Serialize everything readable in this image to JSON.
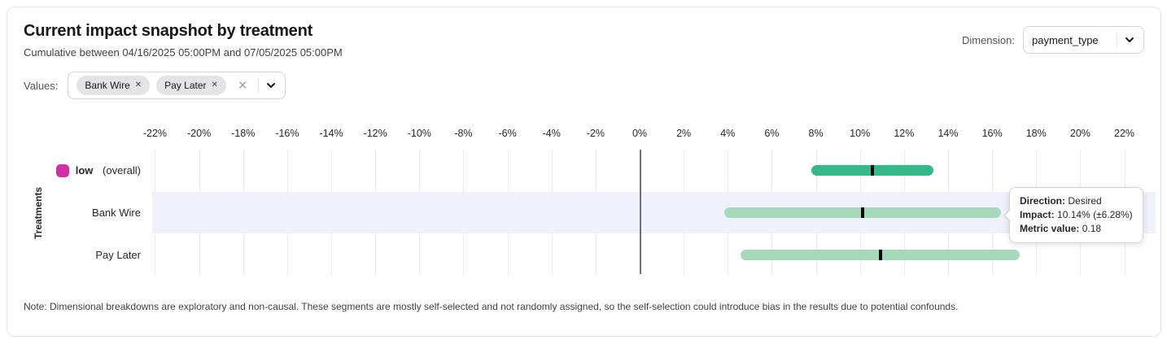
{
  "header": {
    "title": "Current impact snapshot by treatment",
    "subtitle": "Cumulative between 04/16/2025 05:00PM and 07/05/2025 05:00PM",
    "dimension_label": "Dimension:",
    "dimension_value": "payment_type"
  },
  "values_filter": {
    "label": "Values:",
    "chips": [
      "Bank Wire",
      "Pay Later"
    ],
    "chip_remove_icon": "✕",
    "clear_icon": "✕"
  },
  "chart_data": {
    "type": "interval",
    "title": "Current impact snapshot by treatment",
    "ylabel": "Treatments",
    "x_unit": "%",
    "x_ticks": [
      -22,
      -20,
      -18,
      -16,
      -14,
      -12,
      -10,
      -8,
      -6,
      -4,
      -2,
      0,
      2,
      4,
      6,
      8,
      10,
      12,
      14,
      16,
      18,
      20,
      22
    ],
    "xlim": [
      -22.5,
      23.5
    ],
    "grid": "vertical",
    "rows": [
      {
        "label": "low",
        "suffix": " (overall)",
        "label_bold": true,
        "swatch": "#d02fa6",
        "bar_color": "#36b98a",
        "impact": 10.55,
        "half_interval": 2.77,
        "highlighted": false
      },
      {
        "label": "Bank Wire",
        "suffix": "",
        "label_bold": false,
        "swatch": null,
        "bar_color": "#a5d9ba",
        "impact": 10.14,
        "half_interval": 6.28,
        "highlighted": true
      },
      {
        "label": "Pay Later",
        "suffix": "",
        "label_bold": false,
        "swatch": null,
        "bar_color": "#a5d9ba",
        "impact": 10.92,
        "half_interval": 6.33,
        "highlighted": false
      }
    ],
    "tooltip": {
      "attached_row": "Bank Wire",
      "lines": [
        {
          "label": "Direction:",
          "value": "Desired"
        },
        {
          "label": "Impact:",
          "value": "10.14% (±6.28%)"
        },
        {
          "label": "Metric value:",
          "value": "0.18"
        }
      ]
    },
    "colors": {
      "overall_bar": "#36b98a",
      "segment_bar": "#a5d9ba",
      "legend_swatch": "#d02fa6",
      "highlight_band": "#f0f0fb",
      "zero_line": "#6f6f78",
      "point_marker": "#0a0a0a"
    }
  },
  "note": "Note: Dimensional breakdowns are exploratory and non-causal. These segments are mostly self-selected and not randomly assigned, so the self-selection could introduce bias in the results due to potential confounds."
}
